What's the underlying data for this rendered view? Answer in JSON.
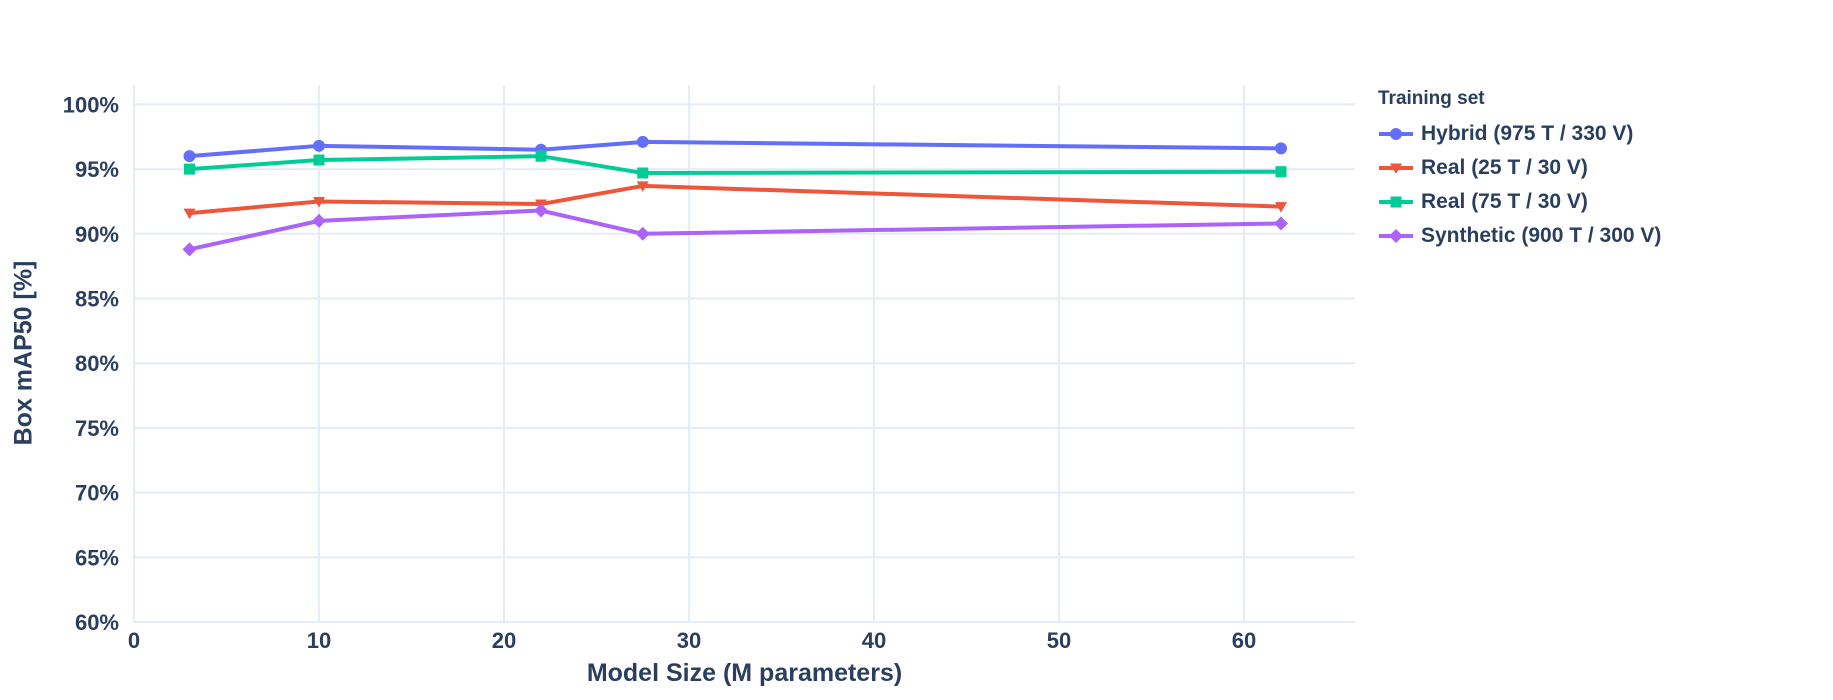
{
  "chart_data": {
    "type": "line",
    "title": "",
    "xlabel": "Model Size (M parameters)",
    "ylabel": "Box mAP50 [%]",
    "legend_title": "Training set",
    "legend_position": "right",
    "grid": true,
    "background_color": "#ffffff",
    "grid_color": "#E5ECF6",
    "text_color": "#2A3F5F",
    "xlim": [
      0,
      66
    ],
    "ylim": [
      60,
      101.5
    ],
    "x_ticks": [
      0,
      10,
      20,
      30,
      40,
      50,
      60
    ],
    "y_ticks": [
      60,
      65,
      70,
      75,
      80,
      85,
      90,
      95,
      100
    ],
    "y_tick_suffix": "%",
    "x": [
      3,
      10,
      22,
      27.5,
      62
    ],
    "series": [
      {
        "name": "Hybrid (975 T / 330 V)",
        "color": "#636EFA",
        "marker": "circle",
        "values": [
          96.0,
          96.8,
          96.5,
          97.1,
          96.6
        ]
      },
      {
        "name": "Real (25 T / 30 V)",
        "color": "#EF553B",
        "marker": "triangle-down",
        "values": [
          91.6,
          92.5,
          92.3,
          93.7,
          92.1
        ]
      },
      {
        "name": "Real (75 T / 30 V)",
        "color": "#00CC96",
        "marker": "square",
        "values": [
          95.0,
          95.7,
          96.0,
          94.7,
          94.8
        ]
      },
      {
        "name": "Synthetic (900 T / 300 V)",
        "color": "#AB63FA",
        "marker": "diamond",
        "values": [
          88.8,
          91.0,
          91.8,
          90.0,
          90.8
        ]
      }
    ]
  }
}
